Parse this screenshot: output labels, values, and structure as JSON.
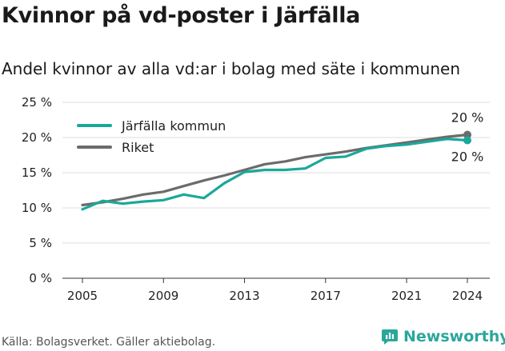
{
  "title": "Kvinnor på vd-poster i Järfälla",
  "subtitle": "Andel kvinnor av alla vd:ar i bolag med säte i kommunen",
  "footer": "Källa: Bolagsverket. Gäller aktiebolag.",
  "brand": {
    "name": "Newsworthy",
    "icon": "bar-chart-logo-icon",
    "color": "#2aa79b"
  },
  "chart_data": {
    "type": "line",
    "x": [
      2005,
      2006,
      2007,
      2008,
      2009,
      2010,
      2011,
      2012,
      2013,
      2014,
      2015,
      2016,
      2017,
      2018,
      2019,
      2020,
      2021,
      2022,
      2023,
      2024
    ],
    "series": [
      {
        "name": "Järfälla kommun",
        "color": "#1aa89b",
        "values": [
          9.8,
          11.0,
          10.6,
          10.9,
          11.1,
          11.9,
          11.4,
          13.5,
          15.1,
          15.4,
          15.4,
          15.6,
          17.1,
          17.3,
          18.4,
          18.8,
          19.0,
          19.4,
          19.8,
          19.6
        ],
        "end_label": "20 %"
      },
      {
        "name": "Riket",
        "color": "#6b6b6b",
        "values": [
          10.4,
          10.8,
          11.3,
          11.9,
          12.3,
          13.1,
          13.9,
          14.6,
          15.4,
          16.2,
          16.6,
          17.2,
          17.6,
          18.0,
          18.5,
          18.9,
          19.3,
          19.7,
          20.1,
          20.4
        ],
        "end_label": "20 %"
      }
    ],
    "xticks": [
      2005,
      2009,
      2013,
      2017,
      2021,
      2024
    ],
    "yticks": [
      0,
      5,
      10,
      15,
      20,
      25
    ],
    "ytick_labels": [
      "0 %",
      "5 %",
      "10 %",
      "15 %",
      "20 %",
      "25 %"
    ],
    "xlim": [
      2005,
      2024
    ],
    "ylim": [
      0,
      25
    ],
    "grid": "horizontal",
    "legend_position": "top-left"
  }
}
